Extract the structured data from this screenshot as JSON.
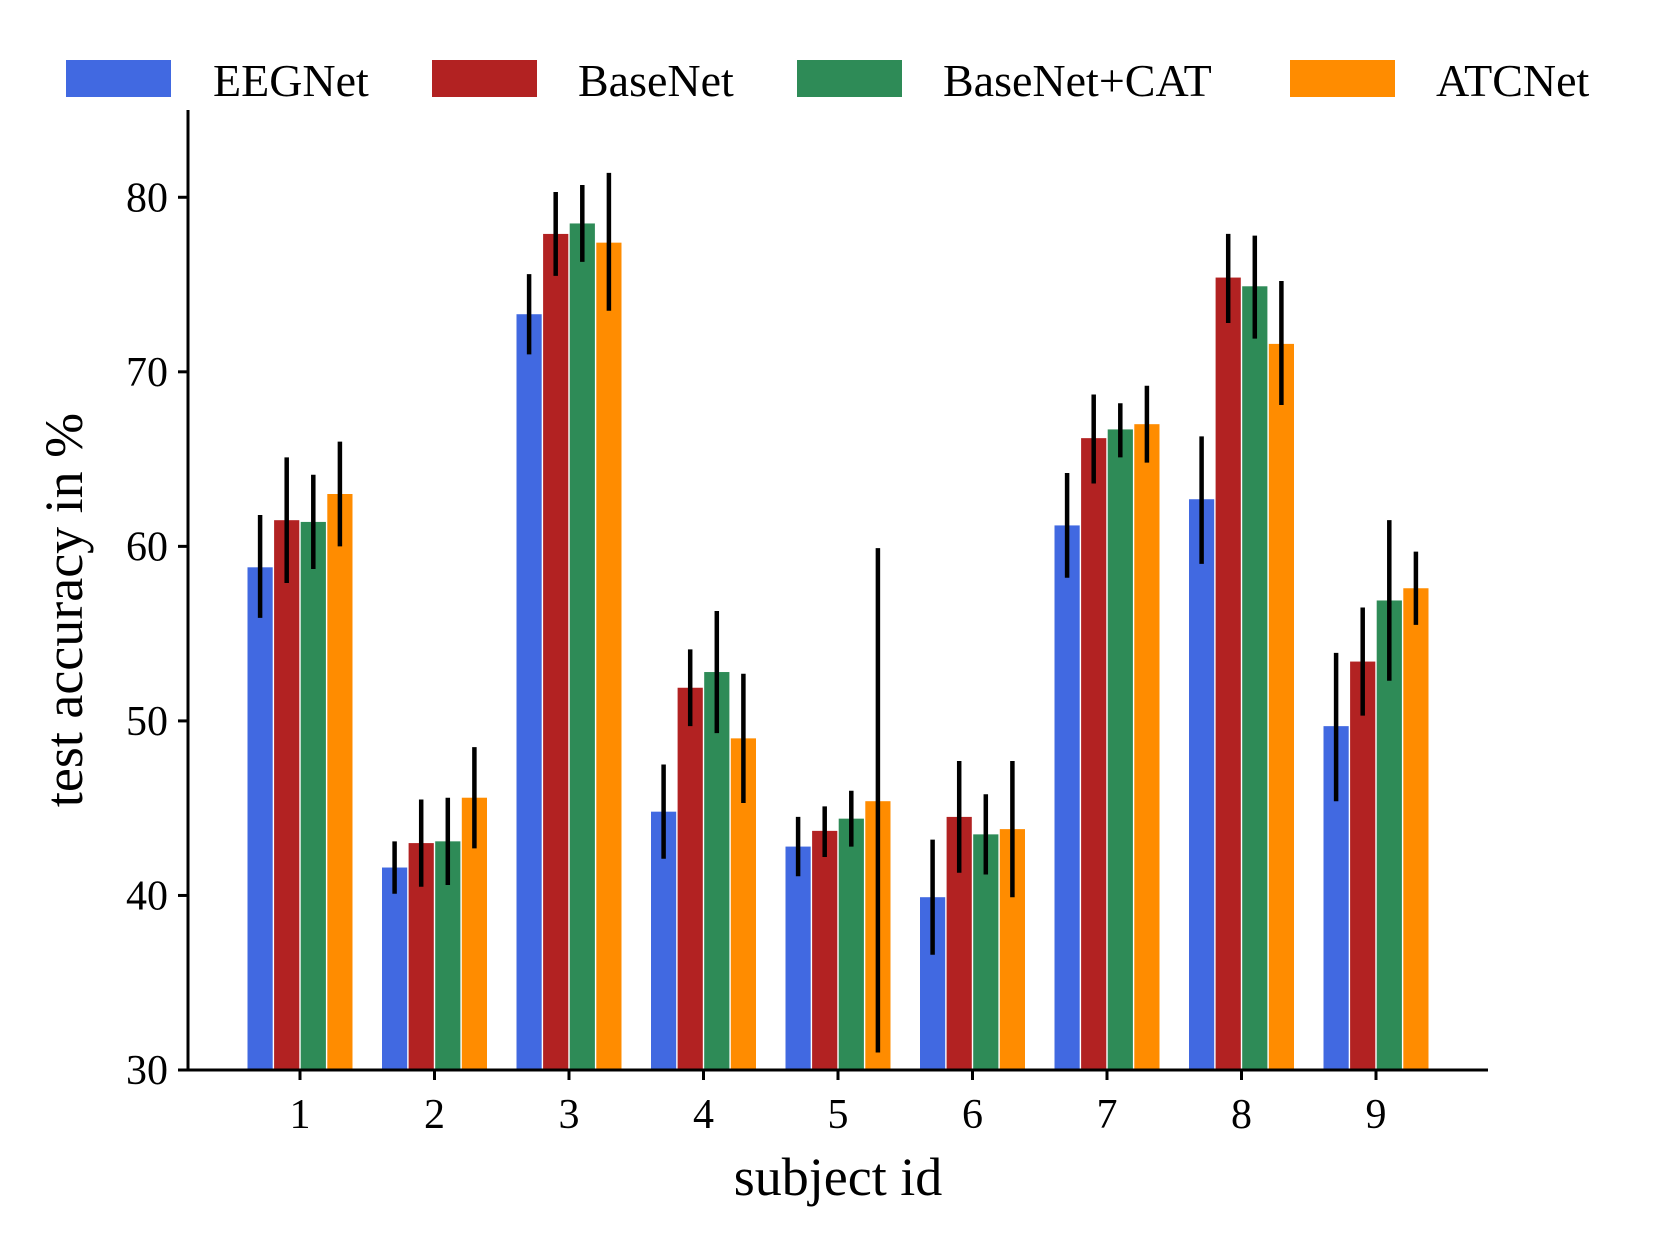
{
  "chart_data": {
    "type": "bar",
    "title": "",
    "xlabel": "subject id",
    "ylabel": "test accuracy in %",
    "ylim": [
      30,
      85
    ],
    "yticks": [
      30,
      40,
      50,
      60,
      70,
      80
    ],
    "grid": false,
    "legend_position": "top",
    "categories": [
      "1",
      "2",
      "3",
      "4",
      "5",
      "6",
      "7",
      "8",
      "9"
    ],
    "series": [
      {
        "name": "EEGNet",
        "color": "#4169e1",
        "values": [
          58.8,
          41.6,
          73.3,
          44.8,
          42.8,
          39.9,
          61.2,
          62.7,
          49.7
        ],
        "err_low": [
          55.9,
          40.1,
          71.0,
          42.1,
          41.1,
          36.6,
          58.2,
          59.0,
          45.4
        ],
        "err_high": [
          61.8,
          43.1,
          75.6,
          47.5,
          44.5,
          43.2,
          64.2,
          66.3,
          53.9
        ]
      },
      {
        "name": "BaseNet",
        "color": "#b22222",
        "values": [
          61.5,
          43.0,
          77.9,
          51.9,
          43.7,
          44.5,
          66.2,
          75.4,
          53.4
        ],
        "err_low": [
          57.9,
          40.5,
          75.5,
          49.7,
          42.2,
          41.3,
          63.6,
          72.8,
          50.3
        ],
        "err_high": [
          65.1,
          45.5,
          80.3,
          54.1,
          45.1,
          47.7,
          68.7,
          77.9,
          56.5
        ]
      },
      {
        "name": "BaseNet+CAT",
        "color": "#2e8b57",
        "values": [
          61.4,
          43.1,
          78.5,
          52.8,
          44.4,
          43.5,
          66.7,
          74.9,
          56.9
        ],
        "err_low": [
          58.7,
          40.6,
          76.3,
          49.3,
          42.8,
          41.2,
          65.1,
          71.9,
          52.3
        ],
        "err_high": [
          64.1,
          45.6,
          80.7,
          56.3,
          46.0,
          45.8,
          68.2,
          77.8,
          61.5
        ]
      },
      {
        "name": "ATCNet",
        "color": "#ff8c00",
        "values": [
          63.0,
          45.6,
          77.4,
          49.0,
          45.4,
          43.8,
          67.0,
          71.6,
          57.6
        ],
        "err_low": [
          60.0,
          42.7,
          73.5,
          45.3,
          31.0,
          39.9,
          64.8,
          68.1,
          55.5
        ],
        "err_high": [
          66.0,
          48.5,
          81.4,
          52.7,
          59.9,
          47.7,
          69.2,
          75.2,
          59.7
        ]
      }
    ]
  }
}
